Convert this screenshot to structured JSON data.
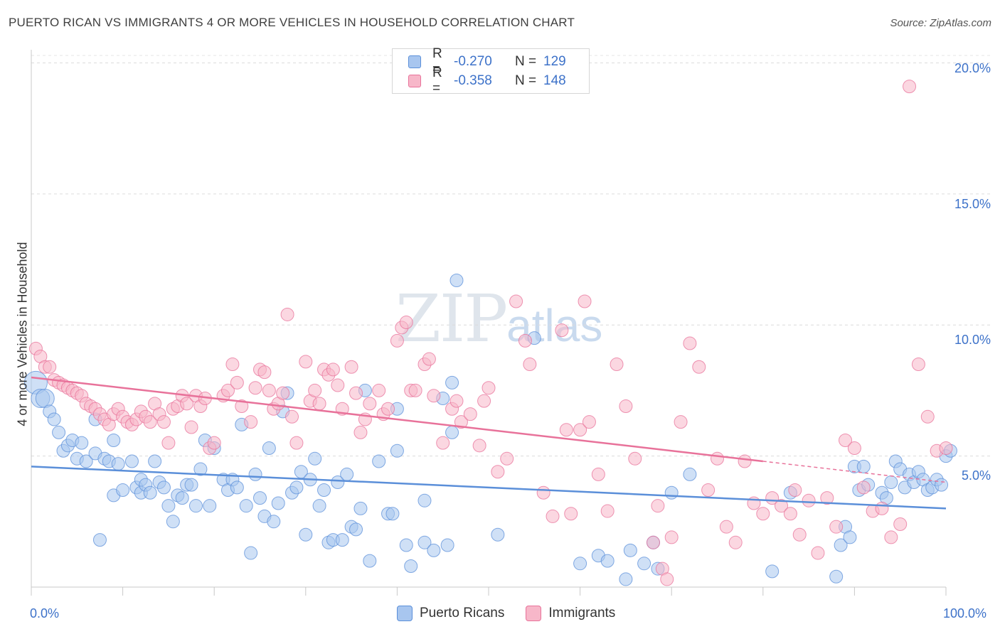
{
  "title": "PUERTO RICAN VS IMMIGRANTS 4 OR MORE VEHICLES IN HOUSEHOLD CORRELATION CHART",
  "source": "Source: ZipAtlas.com",
  "watermark": {
    "zip": "ZIP",
    "atlas": "atlas"
  },
  "legend_top": [
    {
      "r_label": "R =",
      "r_value": "-0.270",
      "n_label": "N =",
      "n_value": "129",
      "color": "#a8c6ef"
    },
    {
      "r_label": "R =",
      "r_value": "-0.358",
      "n_label": "N =",
      "n_value": "148",
      "color": "#f7b7c9"
    }
  ],
  "legend_bottom": [
    {
      "label": "Puerto Ricans",
      "color": "#a8c6ef"
    },
    {
      "label": "Immigrants",
      "color": "#f7b7c9"
    }
  ],
  "chart_data": {
    "type": "scatter",
    "title": "PUERTO RICAN VS IMMIGRANTS 4 OR MORE VEHICLES IN HOUSEHOLD CORRELATION CHART",
    "xlabel": "",
    "ylabel": "4 or more Vehicles in Household",
    "xlim": [
      0,
      100
    ],
    "ylim": [
      0,
      20.5
    ],
    "x_tick_labels": [
      "0.0%",
      "100.0%"
    ],
    "y_ticks": [
      5,
      10,
      15,
      20
    ],
    "y_tick_labels": [
      "5.0%",
      "10.0%",
      "15.0%",
      "20.0%"
    ],
    "grid": true,
    "series": [
      {
        "name": "Puerto Ricans",
        "color": "#5b8fd9",
        "fill": "#a8c6ef",
        "trend": {
          "x0": 0,
          "y0": 4.6,
          "x1": 100,
          "y1": 3.0
        },
        "points": [
          [
            0.5,
            7.8
          ],
          [
            1,
            7.2
          ],
          [
            1.5,
            7.2
          ],
          [
            2,
            6.7
          ],
          [
            2.5,
            6.4
          ],
          [
            3,
            5.9
          ],
          [
            3.5,
            5.2
          ],
          [
            4,
            5.4
          ],
          [
            4.5,
            5.6
          ],
          [
            5,
            4.9
          ],
          [
            5.5,
            5.5
          ],
          [
            6,
            4.8
          ],
          [
            7,
            6.4
          ],
          [
            7,
            5.1
          ],
          [
            7.5,
            1.8
          ],
          [
            8,
            4.9
          ],
          [
            8.5,
            4.8
          ],
          [
            9,
            3.5
          ],
          [
            9,
            5.6
          ],
          [
            9.5,
            4.7
          ],
          [
            10,
            3.7
          ],
          [
            11,
            4.8
          ],
          [
            11.5,
            3.8
          ],
          [
            12,
            3.6
          ],
          [
            12,
            4.1
          ],
          [
            12.5,
            3.9
          ],
          [
            13,
            3.6
          ],
          [
            13.5,
            4.8
          ],
          [
            14,
            4.0
          ],
          [
            14.5,
            3.8
          ],
          [
            15,
            3.1
          ],
          [
            15.5,
            2.5
          ],
          [
            16,
            3.5
          ],
          [
            16.5,
            3.4
          ],
          [
            17,
            3.9
          ],
          [
            17.5,
            3.9
          ],
          [
            18,
            3.1
          ],
          [
            18.5,
            4.5
          ],
          [
            19,
            5.6
          ],
          [
            19.5,
            3.1
          ],
          [
            20,
            5.3
          ],
          [
            21,
            4.1
          ],
          [
            21.5,
            3.7
          ],
          [
            22,
            4.1
          ],
          [
            22.5,
            3.8
          ],
          [
            23,
            6.2
          ],
          [
            23.5,
            3.1
          ],
          [
            24,
            1.3
          ],
          [
            24.5,
            4.3
          ],
          [
            25,
            3.4
          ],
          [
            25.5,
            2.7
          ],
          [
            26,
            5.3
          ],
          [
            26.5,
            2.5
          ],
          [
            27,
            3.2
          ],
          [
            27.5,
            6.7
          ],
          [
            28,
            7.4
          ],
          [
            28.5,
            3.6
          ],
          [
            29,
            3.8
          ],
          [
            29.5,
            4.4
          ],
          [
            30,
            2.0
          ],
          [
            30.5,
            4.1
          ],
          [
            31,
            4.9
          ],
          [
            31.5,
            3.1
          ],
          [
            32,
            3.7
          ],
          [
            32.5,
            1.7
          ],
          [
            33,
            1.8
          ],
          [
            33.5,
            4.0
          ],
          [
            34,
            1.8
          ],
          [
            34.5,
            4.3
          ],
          [
            35,
            2.3
          ],
          [
            35.5,
            2.2
          ],
          [
            36,
            3.0
          ],
          [
            36.5,
            7.5
          ],
          [
            37,
            1.0
          ],
          [
            38,
            4.8
          ],
          [
            39,
            2.8
          ],
          [
            39.5,
            2.8
          ],
          [
            40,
            6.8
          ],
          [
            40,
            5.2
          ],
          [
            41,
            1.6
          ],
          [
            41.5,
            0.8
          ],
          [
            43,
            1.7
          ],
          [
            43,
            3.3
          ],
          [
            44,
            1.4
          ],
          [
            45,
            7.2
          ],
          [
            45.5,
            1.6
          ],
          [
            46,
            7.8
          ],
          [
            46,
            5.9
          ],
          [
            46.5,
            11.7
          ],
          [
            51,
            2.0
          ],
          [
            55,
            9.5
          ],
          [
            60,
            0.9
          ],
          [
            62,
            1.2
          ],
          [
            63,
            1.0
          ],
          [
            65,
            0.3
          ],
          [
            65.5,
            1.4
          ],
          [
            67,
            0.9
          ],
          [
            68,
            1.7
          ],
          [
            68.5,
            0.7
          ],
          [
            70,
            3.6
          ],
          [
            72,
            4.3
          ],
          [
            81,
            0.6
          ],
          [
            83,
            3.6
          ],
          [
            88,
            0.4
          ],
          [
            88.5,
            1.6
          ],
          [
            89,
            2.3
          ],
          [
            89.5,
            1.9
          ],
          [
            90,
            4.6
          ],
          [
            90.5,
            3.7
          ],
          [
            91,
            4.6
          ],
          [
            91.5,
            3.9
          ],
          [
            93,
            3.6
          ],
          [
            93.5,
            3.4
          ],
          [
            94,
            4.0
          ],
          [
            94.5,
            4.8
          ],
          [
            95,
            4.5
          ],
          [
            95.5,
            3.8
          ],
          [
            96,
            4.3
          ],
          [
            96.5,
            4.0
          ],
          [
            97,
            4.4
          ],
          [
            97.5,
            4.1
          ],
          [
            98,
            3.7
          ],
          [
            98.5,
            3.8
          ],
          [
            99,
            4.1
          ],
          [
            99.5,
            3.9
          ],
          [
            100,
            5.0
          ],
          [
            100.5,
            5.2
          ]
        ]
      },
      {
        "name": "Immigrants",
        "color": "#e8729a",
        "fill": "#f7b7c9",
        "trend": {
          "x0": 0,
          "y0": 8.0,
          "x1": 80,
          "y1": 4.8
        },
        "trend_dashed": {
          "x0": 80,
          "y0": 4.8,
          "x1": 100,
          "y1": 4.0
        },
        "points": [
          [
            0.5,
            9.1
          ],
          [
            1,
            8.8
          ],
          [
            1.5,
            8.4
          ],
          [
            2,
            8.4
          ],
          [
            2.5,
            7.9
          ],
          [
            3,
            7.8
          ],
          [
            3.5,
            7.7
          ],
          [
            4,
            7.6
          ],
          [
            4.5,
            7.5
          ],
          [
            5,
            7.4
          ],
          [
            5.5,
            7.3
          ],
          [
            6,
            7.0
          ],
          [
            6.5,
            6.9
          ],
          [
            7,
            6.8
          ],
          [
            7.5,
            6.6
          ],
          [
            8,
            6.4
          ],
          [
            8.5,
            6.2
          ],
          [
            9,
            6.6
          ],
          [
            9.5,
            6.8
          ],
          [
            10,
            6.5
          ],
          [
            10.5,
            6.3
          ],
          [
            11,
            6.2
          ],
          [
            11.5,
            6.4
          ],
          [
            12,
            6.7
          ],
          [
            12.5,
            6.5
          ],
          [
            13,
            6.3
          ],
          [
            13.5,
            7.0
          ],
          [
            14,
            6.6
          ],
          [
            14.5,
            6.3
          ],
          [
            15,
            5.5
          ],
          [
            15.5,
            6.8
          ],
          [
            16,
            6.9
          ],
          [
            16.5,
            7.3
          ],
          [
            17,
            7.0
          ],
          [
            17.5,
            6.1
          ],
          [
            18,
            7.3
          ],
          [
            18.5,
            6.9
          ],
          [
            19,
            7.2
          ],
          [
            19.5,
            5.3
          ],
          [
            20,
            5.5
          ],
          [
            21,
            7.3
          ],
          [
            21.5,
            7.5
          ],
          [
            22,
            8.5
          ],
          [
            22.5,
            7.8
          ],
          [
            23,
            6.9
          ],
          [
            24,
            6.3
          ],
          [
            24.5,
            7.6
          ],
          [
            25,
            8.3
          ],
          [
            25.5,
            8.2
          ],
          [
            26,
            7.5
          ],
          [
            26.5,
            6.8
          ],
          [
            27,
            7.0
          ],
          [
            27.5,
            7.4
          ],
          [
            28,
            10.4
          ],
          [
            28.5,
            6.5
          ],
          [
            29,
            5.5
          ],
          [
            30,
            8.6
          ],
          [
            30.5,
            7.1
          ],
          [
            31,
            7.5
          ],
          [
            31.5,
            7.0
          ],
          [
            32,
            8.3
          ],
          [
            32.5,
            8.1
          ],
          [
            33,
            8.3
          ],
          [
            33.5,
            7.7
          ],
          [
            34,
            6.8
          ],
          [
            35,
            8.4
          ],
          [
            35.5,
            7.4
          ],
          [
            36,
            5.9
          ],
          [
            36.5,
            6.4
          ],
          [
            37,
            7.0
          ],
          [
            38,
            7.5
          ],
          [
            38.5,
            6.6
          ],
          [
            39,
            6.8
          ],
          [
            40,
            9.4
          ],
          [
            40.5,
            9.9
          ],
          [
            41,
            10.1
          ],
          [
            41.5,
            7.5
          ],
          [
            42,
            7.5
          ],
          [
            43,
            8.5
          ],
          [
            43.5,
            8.7
          ],
          [
            44,
            7.3
          ],
          [
            45,
            5.5
          ],
          [
            46,
            6.8
          ],
          [
            46.5,
            7.1
          ],
          [
            47,
            6.3
          ],
          [
            48,
            6.6
          ],
          [
            49,
            5.4
          ],
          [
            49.5,
            7.1
          ],
          [
            50,
            7.6
          ],
          [
            51,
            4.4
          ],
          [
            52,
            4.9
          ],
          [
            53,
            10.9
          ],
          [
            54,
            9.4
          ],
          [
            54.5,
            8.5
          ],
          [
            56,
            3.6
          ],
          [
            57,
            2.7
          ],
          [
            58,
            9.8
          ],
          [
            58.5,
            6.0
          ],
          [
            59,
            2.8
          ],
          [
            60,
            6.0
          ],
          [
            60.5,
            10.9
          ],
          [
            61,
            6.3
          ],
          [
            62,
            4.3
          ],
          [
            63,
            2.9
          ],
          [
            64,
            8.5
          ],
          [
            65,
            6.9
          ],
          [
            66,
            4.9
          ],
          [
            68,
            1.7
          ],
          [
            68.5,
            3.1
          ],
          [
            69,
            0.7
          ],
          [
            69.5,
            0.3
          ],
          [
            70,
            1.9
          ],
          [
            71,
            6.3
          ],
          [
            72,
            9.3
          ],
          [
            73,
            8.4
          ],
          [
            74,
            3.7
          ],
          [
            75,
            4.9
          ],
          [
            76,
            2.3
          ],
          [
            77,
            1.7
          ],
          [
            78,
            4.8
          ],
          [
            79,
            3.2
          ],
          [
            80,
            2.8
          ],
          [
            81,
            3.4
          ],
          [
            82,
            3.1
          ],
          [
            83,
            2.8
          ],
          [
            83.5,
            3.7
          ],
          [
            84,
            2.0
          ],
          [
            85,
            3.3
          ],
          [
            86,
            1.3
          ],
          [
            87,
            3.4
          ],
          [
            88,
            2.3
          ],
          [
            89,
            5.6
          ],
          [
            90,
            5.3
          ],
          [
            91,
            3.8
          ],
          [
            92,
            2.9
          ],
          [
            93,
            3.0
          ],
          [
            94,
            1.9
          ],
          [
            95,
            2.4
          ],
          [
            96,
            19.1
          ],
          [
            97,
            8.5
          ],
          [
            98,
            6.5
          ],
          [
            99,
            5.2
          ],
          [
            100,
            5.3
          ]
        ]
      }
    ]
  }
}
